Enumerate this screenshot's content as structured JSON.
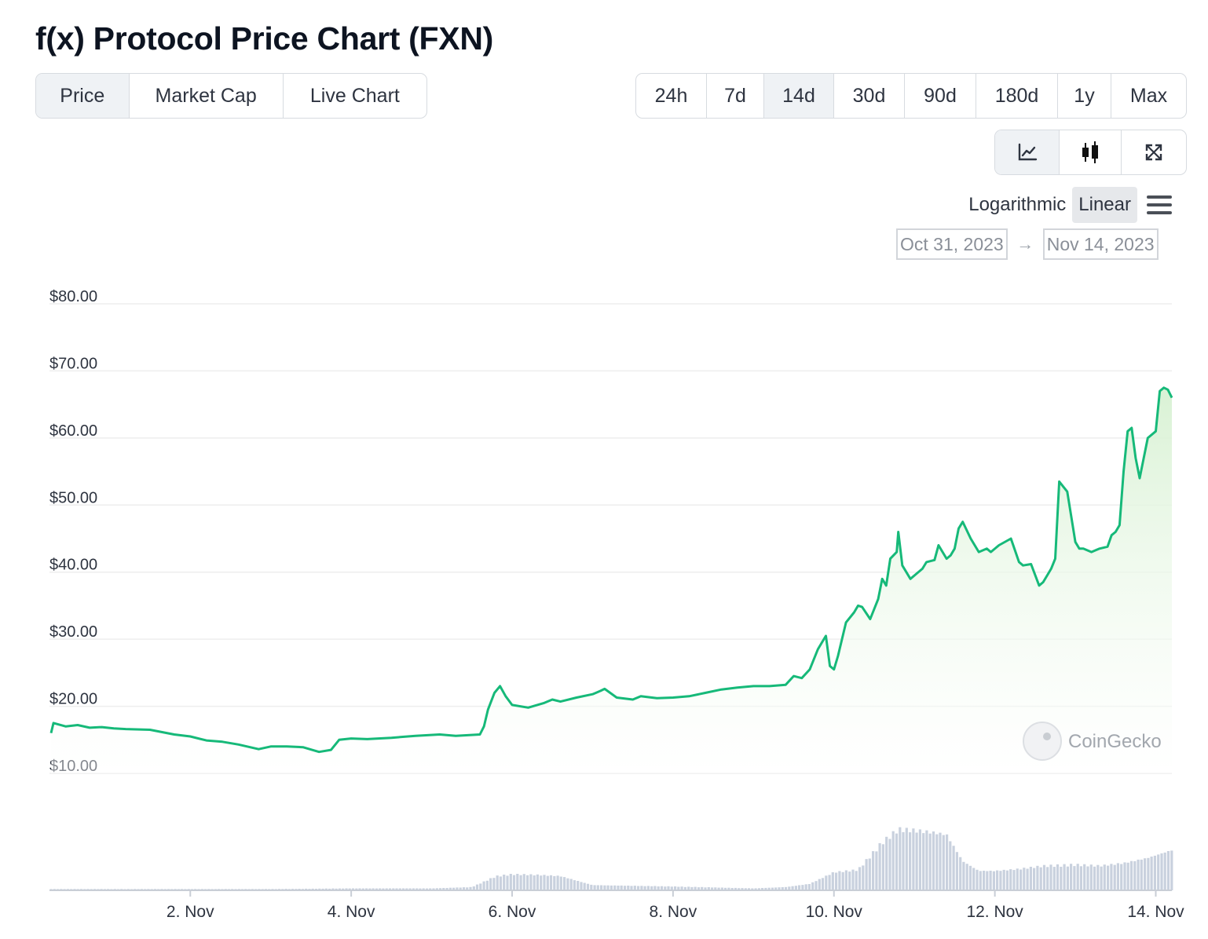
{
  "title": "f(x) Protocol Price Chart (FXN)",
  "tabs": [
    {
      "label": "Price",
      "active": true
    },
    {
      "label": "Market Cap",
      "active": false
    },
    {
      "label": "Live Chart",
      "active": false
    }
  ],
  "ranges": [
    {
      "label": "24h",
      "active": false
    },
    {
      "label": "7d",
      "active": false
    },
    {
      "label": "14d",
      "active": true
    },
    {
      "label": "30d",
      "active": false
    },
    {
      "label": "90d",
      "active": false
    },
    {
      "label": "180d",
      "active": false
    },
    {
      "label": "1y",
      "active": false
    },
    {
      "label": "Max",
      "active": false
    }
  ],
  "view_icons": [
    {
      "icon": "line-chart-icon",
      "active": true
    },
    {
      "icon": "candlestick-icon",
      "active": false
    },
    {
      "icon": "fullscreen-icon",
      "active": false
    }
  ],
  "scale": {
    "logarithmic": "Logarithmic",
    "linear": "Linear",
    "active": "Linear"
  },
  "date_range": {
    "from": "Oct 31, 2023",
    "to": "Nov 14, 2023",
    "arrow": "→"
  },
  "watermark": "CoinGecko",
  "colors": {
    "line": "#16b979",
    "fill_top": "#d7f1d2",
    "volume": "#c9d1de",
    "grid": "#eeeeee"
  },
  "chart_data": {
    "type": "line",
    "yticks": [
      "$10.00",
      "$20.00",
      "$30.00",
      "$40.00",
      "$50.00",
      "$60.00",
      "$70.00",
      "$80.00"
    ],
    "ylim": [
      10,
      80
    ],
    "xlim": [
      0.25,
      14.2
    ],
    "xticks": [
      {
        "day": 2,
        "label": "2. Nov"
      },
      {
        "day": 4,
        "label": "4. Nov"
      },
      {
        "day": 6,
        "label": "6. Nov"
      },
      {
        "day": 8,
        "label": "8. Nov"
      },
      {
        "day": 10,
        "label": "10. Nov"
      },
      {
        "day": 12,
        "label": "12. Nov"
      },
      {
        "day": 14,
        "label": "14. Nov"
      }
    ],
    "price_series": {
      "name": "Price",
      "x": [
        0.27,
        0.3,
        0.45,
        0.6,
        0.75,
        0.9,
        1.05,
        1.2,
        1.5,
        1.8,
        2.0,
        2.2,
        2.4,
        2.6,
        2.85,
        3.0,
        3.2,
        3.4,
        3.6,
        3.75,
        3.85,
        4.0,
        4.2,
        4.5,
        4.8,
        5.1,
        5.3,
        5.6,
        5.65,
        5.7,
        5.78,
        5.85,
        5.92,
        6.0,
        6.2,
        6.4,
        6.5,
        6.6,
        6.8,
        7.0,
        7.1,
        7.15,
        7.3,
        7.5,
        7.6,
        7.8,
        8.0,
        8.2,
        8.4,
        8.6,
        8.8,
        9.0,
        9.2,
        9.4,
        9.5,
        9.6,
        9.7,
        9.8,
        9.85,
        9.9,
        9.95,
        10.0,
        10.05,
        10.15,
        10.25,
        10.3,
        10.35,
        10.45,
        10.55,
        10.6,
        10.65,
        10.7,
        10.78,
        10.8,
        10.85,
        10.95,
        11.0,
        11.1,
        11.15,
        11.25,
        11.3,
        11.4,
        11.45,
        11.5,
        11.55,
        11.6,
        11.7,
        11.8,
        11.9,
        11.95,
        12.05,
        12.2,
        12.3,
        12.35,
        12.45,
        12.55,
        12.6,
        12.65,
        12.7,
        12.75,
        12.8,
        12.9,
        13.0,
        13.05,
        13.1,
        13.2,
        13.3,
        13.4,
        13.45,
        13.5,
        13.55,
        13.6,
        13.65,
        13.7,
        13.75,
        13.8,
        13.9,
        14.0,
        14.05,
        14.1,
        14.15,
        14.2
      ],
      "y": [
        16.0,
        17.5,
        17.0,
        17.2,
        16.8,
        16.9,
        16.7,
        16.6,
        16.5,
        15.8,
        15.5,
        14.9,
        14.7,
        14.3,
        13.6,
        14.0,
        14.0,
        13.9,
        13.2,
        13.5,
        15.0,
        15.2,
        15.1,
        15.3,
        15.6,
        15.8,
        15.6,
        15.8,
        17.0,
        19.5,
        22.0,
        23.0,
        21.5,
        20.2,
        19.8,
        20.5,
        21.0,
        20.7,
        21.3,
        21.8,
        22.3,
        22.6,
        21.3,
        21.0,
        21.5,
        21.2,
        21.3,
        21.5,
        22.0,
        22.5,
        22.8,
        23.0,
        23.0,
        23.2,
        24.5,
        24.2,
        25.5,
        28.5,
        29.5,
        30.5,
        26.0,
        25.5,
        27.5,
        32.5,
        34.0,
        35.0,
        34.8,
        33.0,
        36.0,
        39.0,
        38.0,
        42.0,
        43.0,
        46.0,
        41.0,
        39.0,
        39.5,
        40.5,
        41.5,
        41.8,
        44.0,
        42.0,
        42.5,
        43.5,
        46.5,
        47.5,
        45.0,
        43.0,
        43.5,
        43.0,
        44.0,
        45.0,
        41.5,
        41.0,
        41.2,
        38.0,
        38.5,
        39.5,
        40.5,
        42.0,
        53.5,
        52.0,
        44.5,
        43.5,
        43.5,
        43.0,
        43.5,
        43.8,
        45.5,
        46.0,
        47.0,
        55.0,
        61.0,
        61.5,
        57.0,
        54.0,
        60.0,
        61.0,
        67.0,
        67.5,
        67.2,
        66.0
      ]
    },
    "volume_series": {
      "name": "Volume",
      "x": [
        0,
        1,
        2,
        3,
        4,
        5,
        5.5,
        5.8,
        6.0,
        6.3,
        6.6,
        7,
        8,
        9,
        9.4,
        9.7,
        10,
        10.3,
        10.6,
        10.8,
        11,
        11.2,
        11.4,
        11.6,
        11.8,
        12,
        12.3,
        12.6,
        13,
        13.3,
        13.6,
        13.9,
        14.2
      ],
      "y": [
        0.02,
        0.02,
        0.02,
        0.02,
        0.03,
        0.03,
        0.05,
        0.22,
        0.25,
        0.24,
        0.22,
        0.08,
        0.06,
        0.03,
        0.05,
        0.1,
        0.28,
        0.32,
        0.75,
        0.95,
        0.93,
        0.9,
        0.86,
        0.45,
        0.3,
        0.3,
        0.33,
        0.38,
        0.4,
        0.38,
        0.42,
        0.5,
        0.62
      ]
    }
  }
}
